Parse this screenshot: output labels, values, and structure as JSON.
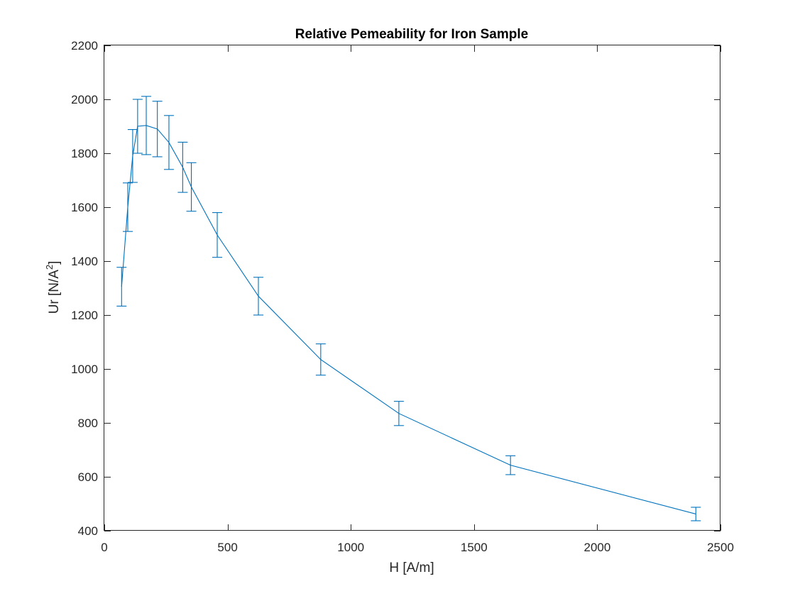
{
  "chart_data": {
    "type": "line",
    "title": "Relative Pemeability for Iron Sample",
    "xlabel": "H [A/m]",
    "ylabel": {
      "base": "Ur [N/A",
      "superscript": "2",
      "close": "]"
    },
    "xlim": [
      0,
      2500
    ],
    "ylim": [
      400,
      2200
    ],
    "xticks": [
      0,
      500,
      1000,
      1500,
      2000,
      2500
    ],
    "yticks": [
      400,
      600,
      800,
      1000,
      1200,
      1400,
      1600,
      1800,
      2000,
      2200
    ],
    "grid": false,
    "legend": "none",
    "series": [
      {
        "color": "#0072BD",
        "x": [
          70,
          95,
          115,
          135,
          170,
          215,
          262,
          318,
          353,
          458,
          625,
          878,
          1195,
          1648,
          2400
        ],
        "y": [
          1305,
          1600,
          1790,
          1900,
          1903,
          1890,
          1840,
          1748,
          1675,
          1497,
          1270,
          1035,
          835,
          643,
          462
        ],
        "error": [
          72,
          90,
          98,
          100,
          108,
          103,
          100,
          93,
          90,
          83,
          70,
          58,
          45,
          35,
          25
        ]
      }
    ]
  }
}
